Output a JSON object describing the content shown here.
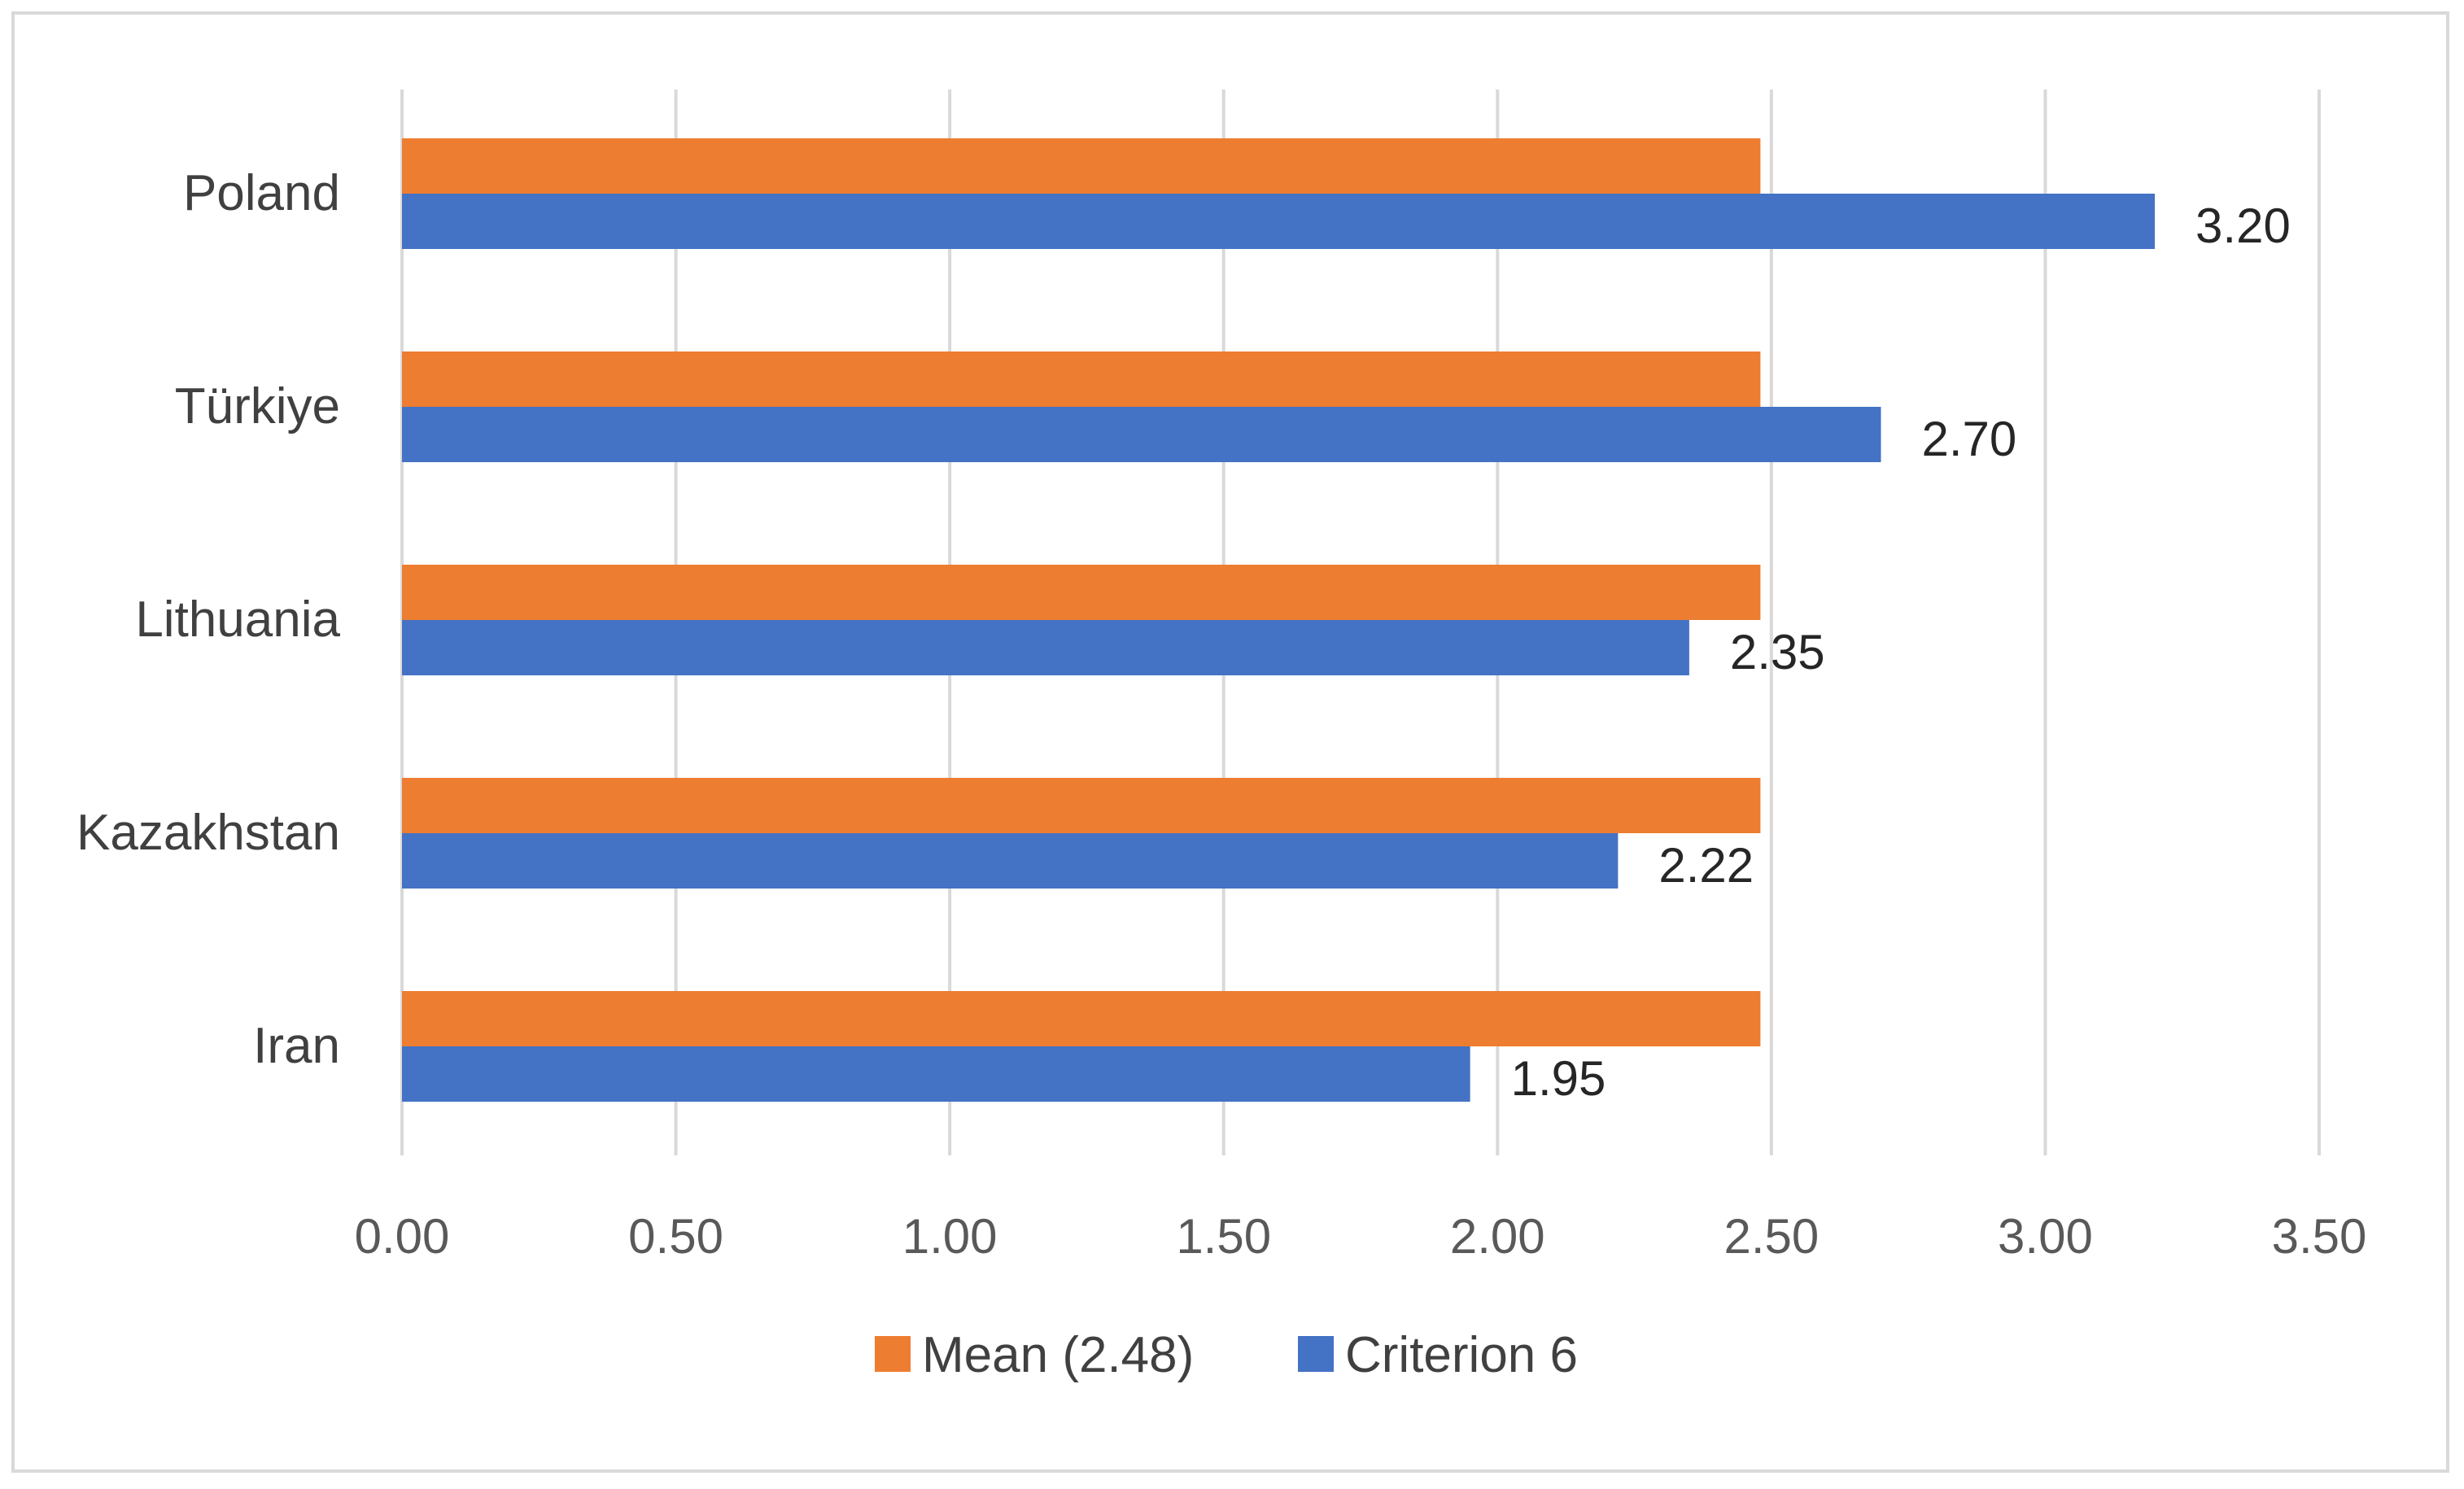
{
  "chart_data": {
    "type": "bar",
    "orientation": "horizontal",
    "title": "",
    "xlabel": "",
    "ylabel": "",
    "categories": [
      "Poland",
      "Türkiye",
      "Lithuania",
      "Kazakhstan",
      "Iran"
    ],
    "series": [
      {
        "name": "Mean (2.48)",
        "color": "#ed7d31",
        "values": [
          2.48,
          2.48,
          2.48,
          2.48,
          2.48
        ],
        "show_labels": false
      },
      {
        "name": "Criterion 6",
        "color": "#4472c4",
        "values": [
          3.2,
          2.7,
          2.35,
          2.22,
          1.95
        ],
        "show_labels": true,
        "labels": [
          "3.20",
          "2.70",
          "2.35",
          "2.22",
          "1.95"
        ]
      }
    ],
    "xlim": [
      0,
      3.5
    ],
    "ticks": [
      0,
      0.5,
      1.0,
      1.5,
      2.0,
      2.5,
      3.0,
      3.5
    ],
    "tick_labels": [
      "0.00",
      "0.50",
      "1.00",
      "1.50",
      "2.00",
      "2.50",
      "3.00",
      "3.50"
    ],
    "grid": true,
    "legend_position": "bottom"
  }
}
